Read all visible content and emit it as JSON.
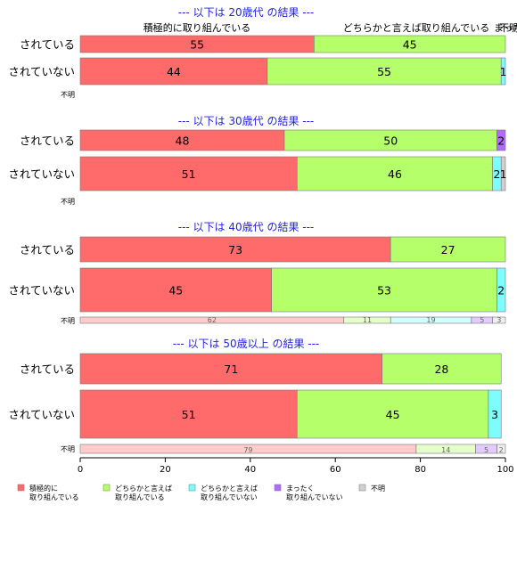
{
  "chart_data": {
    "type": "bar",
    "orientation": "horizontal",
    "stacked": true,
    "xlim": [
      0,
      100
    ],
    "x_ticks": [
      "0",
      "20",
      "40",
      "60",
      "80",
      "100"
    ],
    "legend_position": "bottom-left",
    "series": [
      {
        "name": "積極的に\n取り組んでいる",
        "color": "#ff6b6b"
      },
      {
        "name": "どちらかと言えば\n取り組んでいる",
        "color": "#b5ff6b"
      },
      {
        "name": "どちらかと言えば\n取り組んでいない",
        "color": "#7ffcff"
      },
      {
        "name": "まったく\n取り組んでいない",
        "color": "#b06bff"
      },
      {
        "name": "不明",
        "color": "#d0d0d0"
      }
    ],
    "panels": [
      {
        "title": "--- 以下は 20歳代 の結果 ---",
        "header_labels": [
          "積極的に取り組んでいる",
          "どちらかと言えば取り組んでいる",
          "まったく",
          "不明"
        ],
        "rows": [
          {
            "label": "されている",
            "values": [
              55,
              45,
              0,
              0,
              0
            ],
            "labels": [
              "55",
              "45",
              "",
              "",
              ""
            ]
          },
          {
            "label": "されていない",
            "values": [
              44,
              55,
              1,
              0,
              0
            ],
            "labels": [
              "44",
              "55",
              "1",
              "",
              ""
            ]
          },
          {
            "label": "不明",
            "values": [],
            "labels": []
          }
        ]
      },
      {
        "title": "--- 以下は 30歳代 の結果 ---",
        "rows": [
          {
            "label": "されている",
            "values": [
              48,
              50,
              0,
              2,
              0
            ],
            "labels": [
              "48",
              "50",
              "",
              "2",
              ""
            ]
          },
          {
            "label": "されていない",
            "values": [
              51,
              46,
              2,
              0,
              1
            ],
            "labels": [
              "51",
              "46",
              "2",
              "",
              "1"
            ]
          },
          {
            "label": "不明",
            "values": [],
            "labels": []
          }
        ]
      },
      {
        "title": "--- 以下は 40歳代 の結果 ---",
        "rows": [
          {
            "label": "されている",
            "values": [
              73,
              27,
              0,
              0,
              0
            ],
            "labels": [
              "73",
              "27",
              "",
              "",
              ""
            ]
          },
          {
            "label": "されていない",
            "values": [
              45,
              53,
              2,
              0,
              0
            ],
            "labels": [
              "45",
              "53",
              "2",
              "",
              ""
            ]
          },
          {
            "label": "不明",
            "values": [
              62,
              11,
              19,
              5,
              3
            ],
            "labels": [
              "62",
              "11",
              "19",
              "5",
              "3"
            ]
          }
        ]
      },
      {
        "title": "--- 以下は 50歳以上 の結果 ---",
        "rows": [
          {
            "label": "されている",
            "values": [
              71,
              28,
              0,
              0,
              0
            ],
            "labels": [
              "71",
              "28",
              "",
              "",
              ""
            ]
          },
          {
            "label": "されていない",
            "values": [
              51,
              45,
              3,
              0,
              0
            ],
            "labels": [
              "51",
              "45",
              "3",
              "",
              ""
            ]
          },
          {
            "label": "不明",
            "values": [
              79,
              14,
              0,
              5,
              2
            ],
            "labels": [
              "79",
              "14",
              "",
              "5",
              "2"
            ]
          }
        ]
      }
    ]
  }
}
